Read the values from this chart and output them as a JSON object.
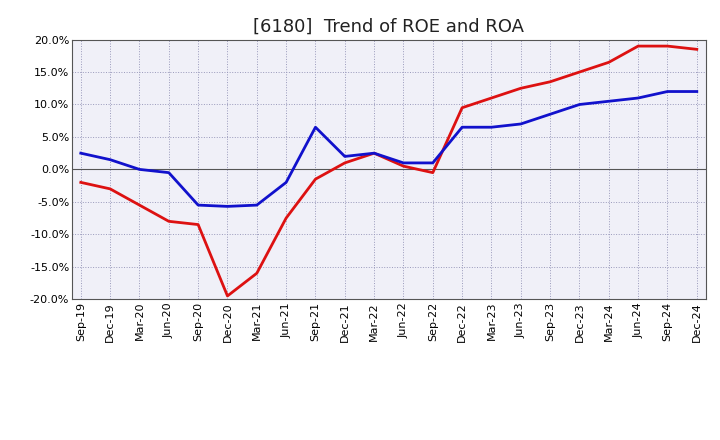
{
  "title": "[6180]  Trend of ROE and ROA",
  "x_labels": [
    "Sep-19",
    "Dec-19",
    "Mar-20",
    "Jun-20",
    "Sep-20",
    "Dec-20",
    "Mar-21",
    "Jun-21",
    "Sep-21",
    "Dec-21",
    "Mar-22",
    "Jun-22",
    "Sep-22",
    "Dec-22",
    "Mar-23",
    "Jun-23",
    "Sep-23",
    "Dec-23",
    "Mar-24",
    "Jun-24",
    "Sep-24",
    "Dec-24"
  ],
  "roe": [
    -2.0,
    -3.0,
    -5.5,
    -8.0,
    -8.5,
    -19.5,
    -16.0,
    -7.5,
    -1.5,
    1.0,
    2.5,
    0.5,
    -0.5,
    9.5,
    11.0,
    12.5,
    13.5,
    15.0,
    16.5,
    19.0,
    19.0,
    18.5
  ],
  "roa": [
    2.5,
    1.5,
    0.0,
    -0.5,
    -5.5,
    -5.7,
    -5.5,
    -2.0,
    6.5,
    2.0,
    2.5,
    1.0,
    1.0,
    6.5,
    6.5,
    7.0,
    8.5,
    10.0,
    10.5,
    11.0,
    12.0,
    12.0
  ],
  "roe_color": "#dd1111",
  "roa_color": "#1111cc",
  "bg_color": "#ffffff",
  "plot_bg_color": "#f0f0f8",
  "grid_color": "#9999bb",
  "ylim": [
    -20.0,
    20.0
  ],
  "yticks": [
    -20.0,
    -15.0,
    -10.0,
    -5.0,
    0.0,
    5.0,
    10.0,
    15.0,
    20.0
  ],
  "line_width": 2.0,
  "title_fontsize": 13,
  "tick_fontsize": 8,
  "legend_fontsize": 10
}
